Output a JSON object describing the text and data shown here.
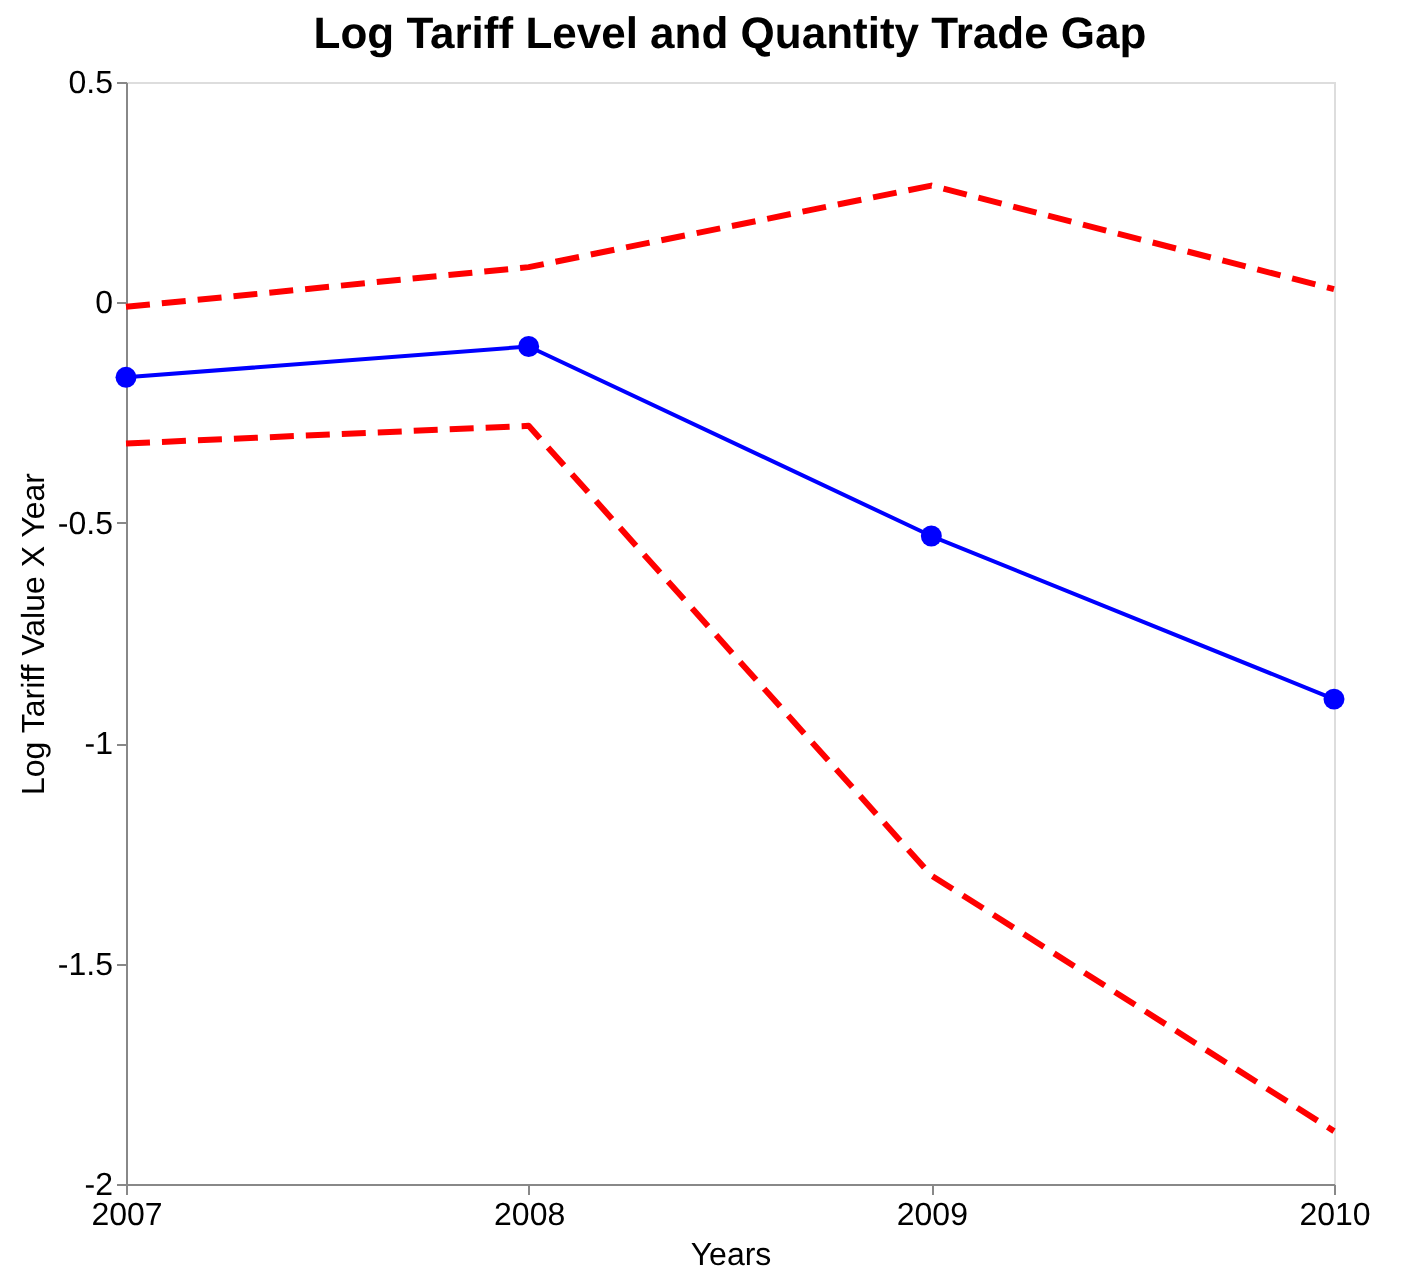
{
  "chart_data": {
    "type": "line",
    "title": "Log Tariff Level and Quantity Trade Gap",
    "xlabel": "Years",
    "ylabel": "Log Tariff Value X Year",
    "x": [
      2007,
      2008,
      2009,
      2010
    ],
    "series": [
      {
        "color": "#0000ff",
        "values": [
          -0.17,
          -0.1,
          -0.53,
          -0.9
        ],
        "marker": "circle",
        "line_style": "solid"
      },
      {
        "color": "#ff0000",
        "values": [
          -0.01,
          0.08,
          0.265,
          0.03
        ],
        "marker": "none",
        "line_style": "dashed"
      },
      {
        "color": "#ff0000",
        "values": [
          -0.32,
          -0.28,
          -1.3,
          -1.88
        ],
        "marker": "none",
        "line_style": "dashed"
      }
    ],
    "xlim": [
      2007,
      2010
    ],
    "xticks": [
      2007,
      2008,
      2009,
      2010
    ],
    "ylim": [
      -2,
      0.5
    ],
    "yticks": [
      -2,
      -1.5,
      -1,
      -0.5,
      0,
      0.5
    ],
    "grid": false,
    "legend": false
  }
}
